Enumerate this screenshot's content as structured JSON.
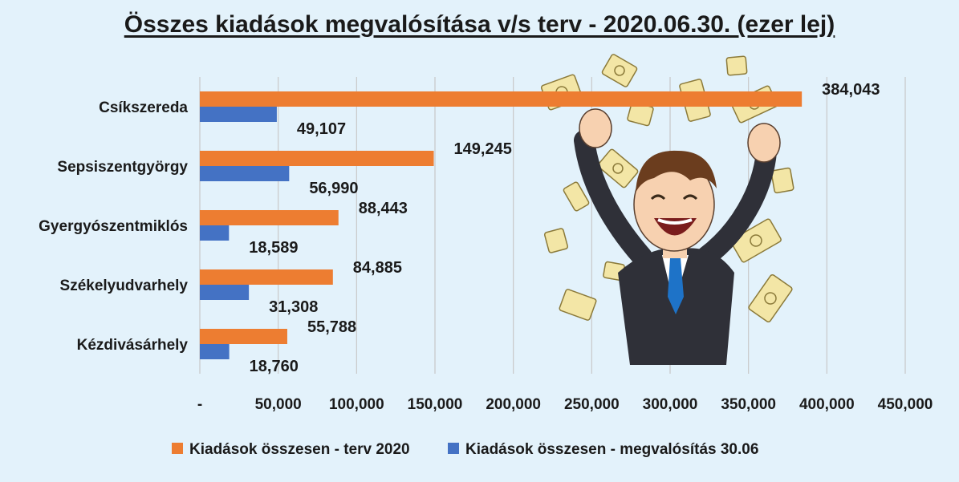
{
  "chart_data": {
    "type": "bar",
    "orientation": "horizontal",
    "title": "Összes kiadások megvalósítása v/s terv - 2020.06.30. (ezer lej)",
    "categories": [
      "Csíkszereda",
      "Sepsiszentgyörgy",
      "Gyergyószentmiklós",
      "Székelyudvarhely",
      "Kézdivásárhely"
    ],
    "series": [
      {
        "name": "Kiadások összesen - terv 2020",
        "color": "#ed7d31",
        "values": [
          384043,
          149245,
          88443,
          84885,
          55788
        ],
        "labels": [
          "384,043",
          "149,245",
          "88,443",
          "84,885",
          "55,788"
        ]
      },
      {
        "name": "Kiadások összesen - megvalósítás 30.06",
        "color": "#4472c4",
        "values": [
          49107,
          56990,
          18589,
          31308,
          18760
        ],
        "labels": [
          "49,107",
          "56,990",
          "18,589",
          "31,308",
          "18,760"
        ]
      }
    ],
    "xlim": [
      0,
      450000
    ],
    "xticks": [
      0,
      50000,
      100000,
      150000,
      200000,
      250000,
      300000,
      350000,
      400000,
      450000
    ],
    "xtick_labels": [
      "-",
      "50,000",
      "100,000",
      "150,000",
      "200,000",
      "250,000",
      "300,000",
      "350,000",
      "400,000",
      "450,000"
    ],
    "grid": true,
    "legend_position": "bottom"
  },
  "decoration": {
    "illustration": "happy-businessman-with-money-icon",
    "colors": {
      "background": "#e3f2fb",
      "gridline": "#c8c8c8",
      "text": "#1a1a1a"
    }
  }
}
